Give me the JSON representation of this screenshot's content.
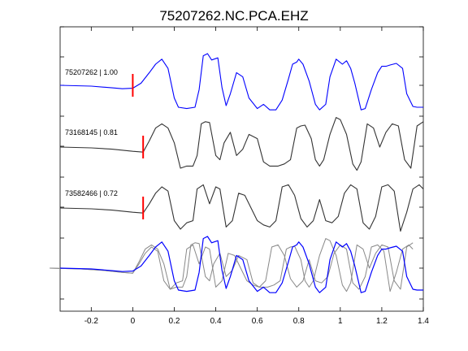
{
  "chart_data": {
    "type": "line",
    "title": "75207262.NC.PCA.EHZ",
    "xlabel": "",
    "ylabel": "",
    "xlim": [
      -0.35,
      1.4
    ],
    "x_ticks": [
      -0.2,
      0,
      0.2,
      0.4,
      0.6,
      0.8,
      1,
      1.2,
      1.4
    ],
    "x_tick_labels": [
      "-0.2",
      "0",
      "0.2",
      "0.4",
      "0.6",
      "0.8",
      "1",
      "1.2",
      "1.4"
    ],
    "grid": false,
    "colors": {
      "reference": "#0000ff",
      "match": "#333333",
      "overlay": "#888888",
      "pick": "#ff0000"
    },
    "traces": [
      {
        "label": "75207262 | 1.00",
        "color": "#0000ff",
        "pick_time": 0.0,
        "x": [
          -0.35,
          -0.2,
          -0.1,
          -0.05,
          0.0,
          0.04,
          0.08,
          0.11,
          0.14,
          0.17,
          0.2,
          0.22,
          0.26,
          0.3,
          0.32,
          0.34,
          0.36,
          0.38,
          0.41,
          0.43,
          0.45,
          0.47,
          0.5,
          0.53,
          0.56,
          0.6,
          0.63,
          0.66,
          0.69,
          0.72,
          0.75,
          0.77,
          0.79,
          0.8,
          0.82,
          0.85,
          0.88,
          0.9,
          0.93,
          0.95,
          0.98,
          1.01,
          1.03,
          1.05,
          1.07,
          1.1,
          1.12,
          1.15,
          1.18,
          1.2,
          1.22,
          1.24,
          1.27,
          1.3,
          1.32,
          1.35,
          1.37,
          1.4
        ],
        "y": [
          0.0,
          -0.02,
          -0.06,
          -0.08,
          -0.07,
          0.05,
          0.3,
          0.5,
          0.62,
          0.4,
          -0.3,
          -0.52,
          -0.55,
          -0.52,
          -0.1,
          0.7,
          0.75,
          0.6,
          0.65,
          -0.05,
          -0.48,
          -0.2,
          0.3,
          0.2,
          -0.3,
          -0.55,
          -0.45,
          -0.58,
          -0.58,
          -0.35,
          0.15,
          0.5,
          0.55,
          0.62,
          0.5,
          0.1,
          -0.45,
          -0.58,
          -0.45,
          0.2,
          0.62,
          0.5,
          0.58,
          0.4,
          0.05,
          -0.58,
          -0.55,
          -0.1,
          0.3,
          0.45,
          0.45,
          0.48,
          0.52,
          0.4,
          -0.2,
          -0.5,
          -0.52,
          -0.52
        ]
      },
      {
        "label": "73168145 | 0.81",
        "color": "#333333",
        "pick_time": 0.05,
        "x": [
          -0.35,
          -0.2,
          -0.1,
          0.0,
          0.05,
          0.08,
          0.11,
          0.14,
          0.17,
          0.2,
          0.23,
          0.26,
          0.29,
          0.31,
          0.33,
          0.35,
          0.37,
          0.4,
          0.42,
          0.44,
          0.47,
          0.5,
          0.53,
          0.56,
          0.6,
          0.63,
          0.66,
          0.7,
          0.73,
          0.76,
          0.79,
          0.81,
          0.83,
          0.86,
          0.88,
          0.9,
          0.92,
          0.95,
          0.98,
          1.0,
          1.03,
          1.06,
          1.08,
          1.1,
          1.13,
          1.16,
          1.19,
          1.22,
          1.25,
          1.28,
          1.31,
          1.34,
          1.37,
          1.4
        ],
        "y": [
          0.0,
          -0.02,
          -0.05,
          -0.1,
          -0.12,
          0.15,
          0.45,
          0.55,
          0.45,
          0.1,
          -0.5,
          -0.45,
          -0.45,
          -0.2,
          0.55,
          0.6,
          0.58,
          -0.2,
          -0.3,
          0.1,
          0.35,
          -0.2,
          -0.05,
          0.3,
          0.2,
          -0.35,
          -0.45,
          -0.45,
          -0.4,
          -0.3,
          0.45,
          0.5,
          0.52,
          0.2,
          -0.3,
          -0.45,
          -0.3,
          0.3,
          0.7,
          0.65,
          0.3,
          -0.4,
          -0.55,
          -0.35,
          0.55,
          0.45,
          0.0,
          0.35,
          0.55,
          0.5,
          -0.3,
          -0.5,
          0.5,
          0.6
        ]
      },
      {
        "label": "73582466 | 0.72",
        "color": "#333333",
        "pick_time": 0.05,
        "x": [
          -0.35,
          -0.2,
          -0.1,
          0.0,
          0.05,
          0.08,
          0.11,
          0.14,
          0.17,
          0.2,
          0.23,
          0.26,
          0.29,
          0.31,
          0.34,
          0.37,
          0.4,
          0.42,
          0.45,
          0.48,
          0.51,
          0.54,
          0.57,
          0.6,
          0.63,
          0.66,
          0.69,
          0.72,
          0.75,
          0.78,
          0.81,
          0.84,
          0.87,
          0.9,
          0.93,
          0.96,
          0.99,
          1.02,
          1.05,
          1.08,
          1.11,
          1.14,
          1.17,
          1.2,
          1.23,
          1.26,
          1.29,
          1.32,
          1.35,
          1.38,
          1.4
        ],
        "y": [
          0.0,
          -0.02,
          -0.05,
          -0.1,
          -0.12,
          0.1,
          0.35,
          0.5,
          0.4,
          -0.3,
          -0.5,
          -0.35,
          -0.3,
          0.45,
          0.55,
          0.1,
          0.5,
          0.45,
          -0.45,
          -0.3,
          0.35,
          0.3,
          0.0,
          -0.3,
          -0.4,
          -0.45,
          -0.3,
          0.5,
          0.55,
          0.3,
          -0.25,
          -0.45,
          -0.3,
          0.2,
          -0.3,
          -0.35,
          -0.2,
          0.35,
          0.55,
          0.45,
          -0.35,
          -0.5,
          -0.2,
          0.5,
          0.55,
          0.4,
          -0.55,
          -0.1,
          0.45,
          0.55,
          0.45
        ]
      }
    ]
  },
  "trace_labels": [
    "75207262 | 1.00",
    "73168145 | 0.81",
    "73582466 | 0.72"
  ]
}
